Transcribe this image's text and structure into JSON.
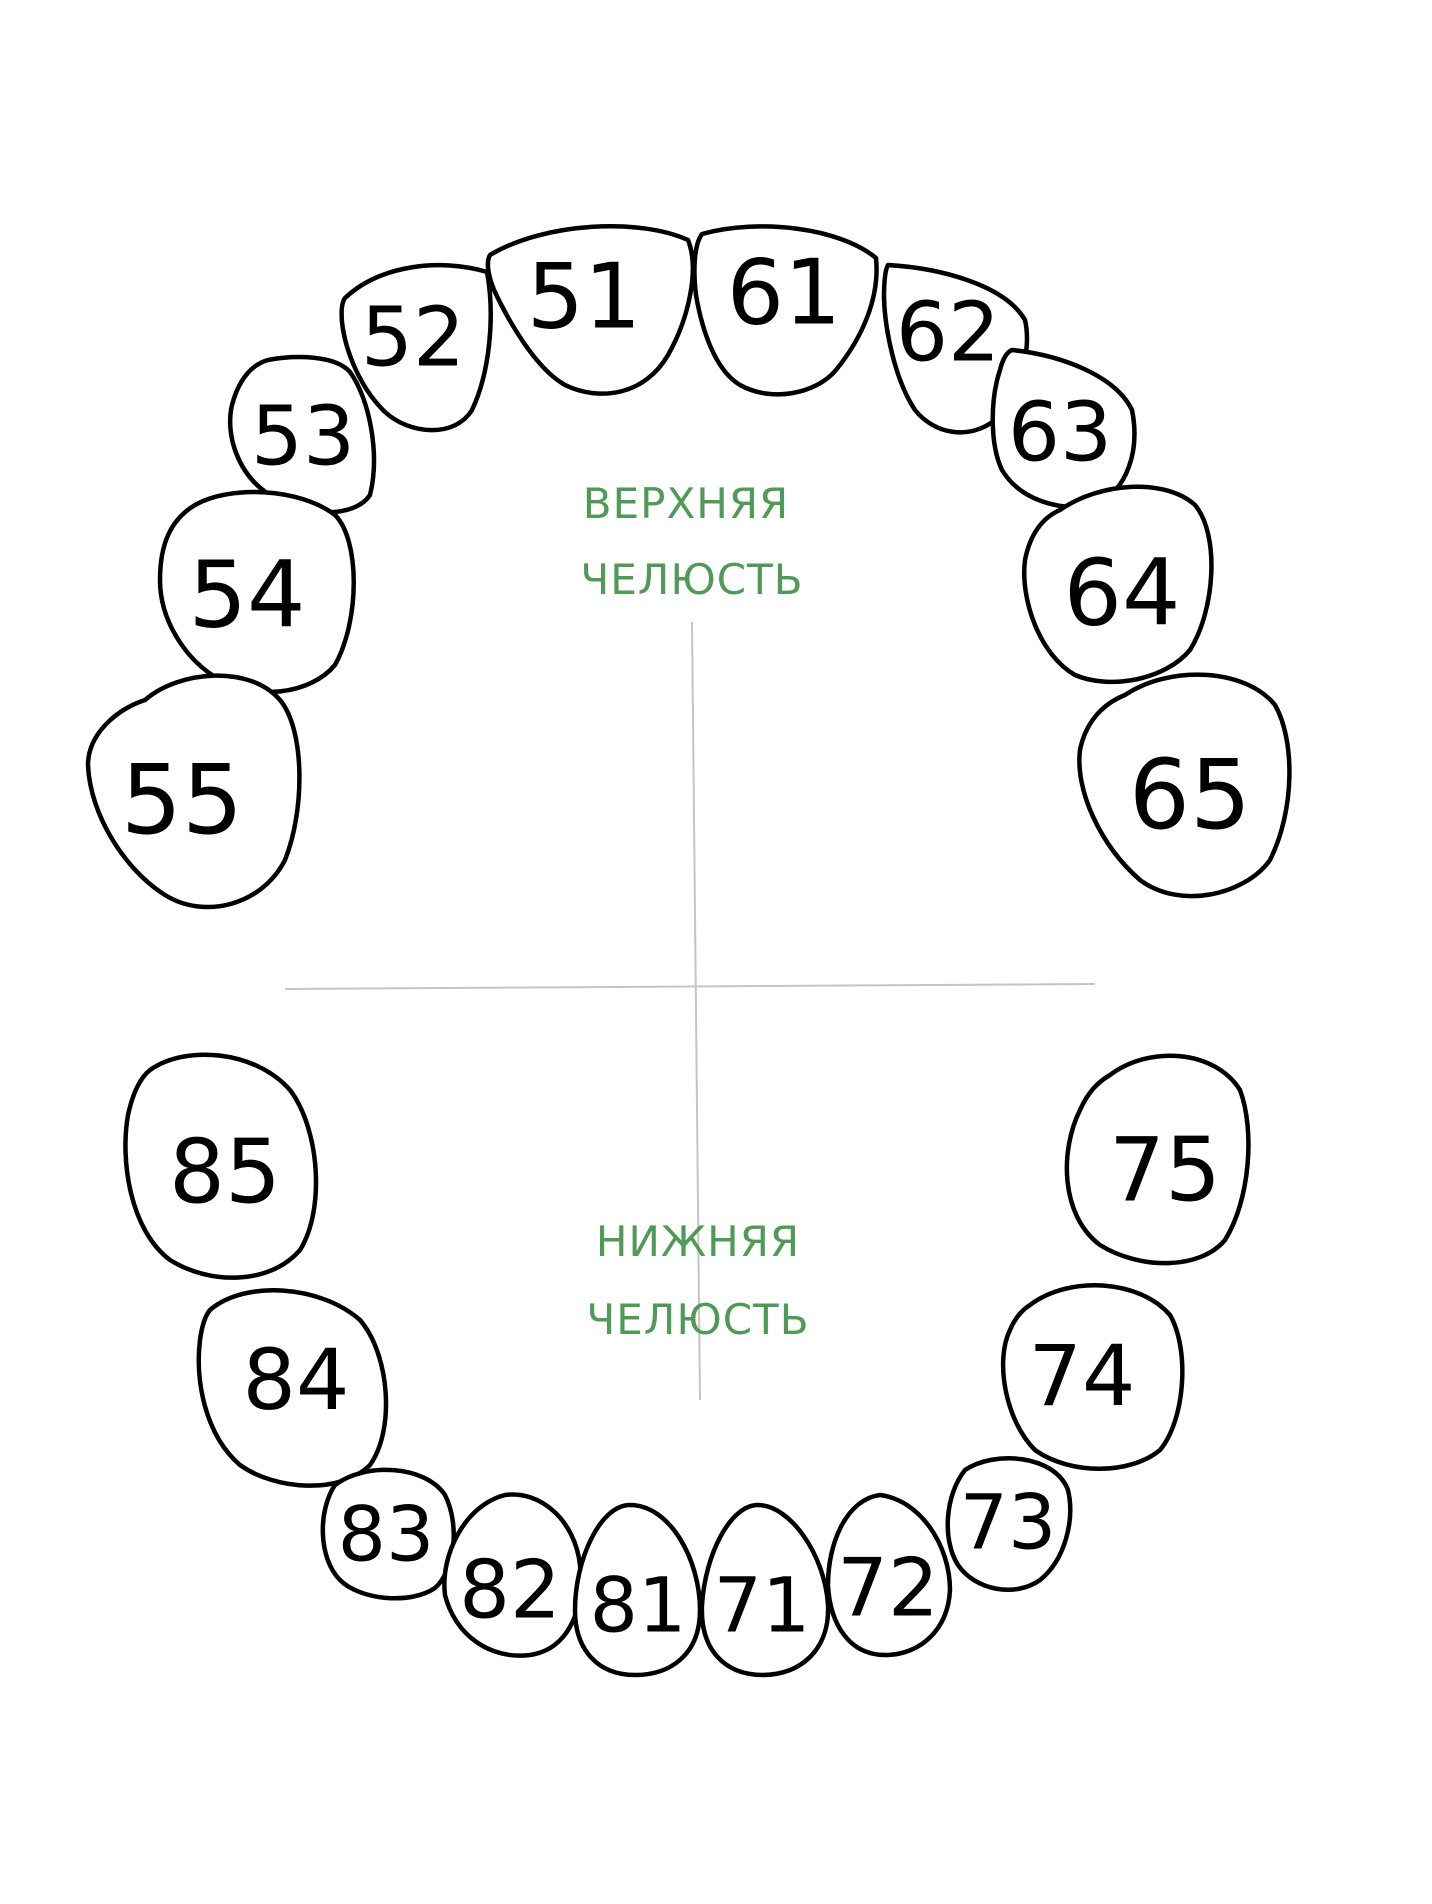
{
  "colors": {
    "label": "#4e9a56",
    "axis": "#c4c4c4",
    "outline": "#000000"
  },
  "upper_jaw": {
    "line1": "ВЕРХНЯЯ",
    "line2": "ЧЕЛЮСТЬ"
  },
  "lower_jaw": {
    "line1": "НИЖНЯЯ",
    "line2": "ЧЕЛЮСТЬ"
  },
  "teeth": {
    "t51": "51",
    "t52": "52",
    "t53": "53",
    "t54": "54",
    "t55": "55",
    "t61": "61",
    "t62": "62",
    "t63": "63",
    "t64": "64",
    "t65": "65",
    "t71": "71",
    "t72": "72",
    "t73": "73",
    "t74": "74",
    "t75": "75",
    "t81": "81",
    "t82": "82",
    "t83": "83",
    "t84": "84",
    "t85": "85"
  }
}
